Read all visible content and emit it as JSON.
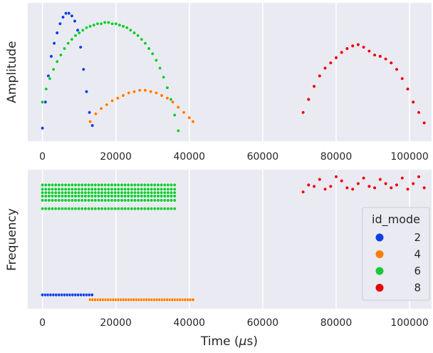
{
  "chart_data": [
    {
      "type": "scatter",
      "ylabel": "Amplitude",
      "xlabel": "",
      "xlim": [
        -4000,
        106000
      ],
      "xticks": [
        0,
        20000,
        40000,
        60000,
        80000,
        100000
      ],
      "xtick_labels": [
        "0",
        "20000",
        "40000",
        "60000",
        "80000",
        "100000"
      ],
      "ylim": [
        0,
        1.06
      ],
      "yticks_shown": false,
      "grid": true,
      "series": [
        {
          "mode": "2",
          "color": "#0d3fe8",
          "x": [
            0,
            800,
            1600,
            2400,
            3200,
            4000,
            4800,
            5600,
            6400,
            7200,
            8000,
            8800,
            9600,
            10400,
            11200,
            12000,
            12800,
            13600
          ],
          "y": [
            0.1,
            0.3,
            0.5,
            0.65,
            0.75,
            0.83,
            0.9,
            0.95,
            0.98,
            0.98,
            0.96,
            0.92,
            0.85,
            0.72,
            0.55,
            0.38,
            0.22,
            0.12
          ]
        },
        {
          "mode": "4",
          "color": "#ff7c00",
          "x": [
            13000,
            14500,
            16000,
            17500,
            19000,
            20500,
            22000,
            23500,
            25000,
            26500,
            28000,
            29500,
            31000,
            32500,
            34000,
            35500,
            37000,
            38500,
            40000,
            41000
          ],
          "y": [
            0.15,
            0.21,
            0.25,
            0.28,
            0.31,
            0.33,
            0.35,
            0.37,
            0.38,
            0.39,
            0.39,
            0.38,
            0.37,
            0.35,
            0.33,
            0.3,
            0.26,
            0.22,
            0.18,
            0.15
          ]
        },
        {
          "mode": "6",
          "color": "#1ac938",
          "x": [
            0,
            1000,
            2000,
            3000,
            4000,
            5000,
            6000,
            7000,
            8000,
            9000,
            10000,
            11000,
            12000,
            13000,
            14000,
            15000,
            16000,
            17000,
            18000,
            19000,
            20000,
            21000,
            22000,
            23000,
            24000,
            25000,
            26000,
            27000,
            28000,
            29000,
            30000,
            31000,
            32000,
            33000,
            34000,
            35000,
            36000,
            37000
          ],
          "y": [
            0.3,
            0.4,
            0.48,
            0.55,
            0.61,
            0.66,
            0.71,
            0.75,
            0.78,
            0.81,
            0.83,
            0.85,
            0.87,
            0.88,
            0.89,
            0.9,
            0.9,
            0.91,
            0.91,
            0.9,
            0.9,
            0.89,
            0.88,
            0.87,
            0.85,
            0.83,
            0.81,
            0.78,
            0.75,
            0.71,
            0.67,
            0.62,
            0.56,
            0.49,
            0.41,
            0.32,
            0.2,
            0.08
          ]
        },
        {
          "mode": "8",
          "color": "#e8000b",
          "x": [
            71000,
            72500,
            74000,
            75500,
            77000,
            78500,
            80000,
            81500,
            83000,
            84500,
            86000,
            87500,
            89000,
            90500,
            92000,
            93500,
            95000,
            96500,
            98000,
            99500,
            101000,
            102500,
            104000
          ],
          "y": [
            0.22,
            0.32,
            0.42,
            0.5,
            0.56,
            0.6,
            0.64,
            0.68,
            0.71,
            0.73,
            0.74,
            0.72,
            0.69,
            0.66,
            0.65,
            0.63,
            0.6,
            0.55,
            0.48,
            0.4,
            0.3,
            0.22,
            0.14
          ]
        }
      ]
    },
    {
      "type": "scatter",
      "ylabel": "Frequency",
      "xlabel": "Time (μs)",
      "xlim": [
        -4000,
        106000
      ],
      "xticks": [
        0,
        20000,
        40000,
        60000,
        80000,
        100000
      ],
      "xtick_labels": [
        "0",
        "20000",
        "40000",
        "60000",
        "80000",
        "100000"
      ],
      "ylim": [
        0,
        1
      ],
      "yticks_shown": false,
      "grid": true,
      "legend": {
        "title": "id_mode",
        "placement": "right",
        "entries": [
          {
            "label": "2",
            "color": "#0d3fe8"
          },
          {
            "label": "4",
            "color": "#ff7c00"
          },
          {
            "label": "6",
            "color": "#1ac938"
          },
          {
            "label": "8",
            "color": "#e8000b"
          }
        ]
      },
      "series": [
        {
          "mode": "2",
          "color": "#0d3fe8",
          "x_start": 0,
          "x_end": 13500,
          "x_step": 750,
          "levels": [
            0.1
          ]
        },
        {
          "mode": "4",
          "color": "#ff7c00",
          "x_start": 13000,
          "x_end": 41000,
          "x_step": 700,
          "levels": [
            0.065
          ]
        },
        {
          "mode": "6",
          "color": "#1ac938",
          "x_start": 0,
          "x_end": 36500,
          "x_step": 900,
          "levels": [
            0.89,
            0.86,
            0.835,
            0.81,
            0.78,
            0.72
          ]
        },
        {
          "mode": "8",
          "color": "#e8000b",
          "x": [
            71000,
            72500,
            74000,
            75500,
            77000,
            78500,
            80000,
            81500,
            83000,
            84500,
            86000,
            87500,
            89000,
            90500,
            92000,
            93500,
            95000,
            96500,
            98000,
            99500,
            101000,
            102500,
            104000
          ],
          "y": [
            0.84,
            0.89,
            0.88,
            0.93,
            0.86,
            0.88,
            0.95,
            0.92,
            0.87,
            0.86,
            0.9,
            0.94,
            0.88,
            0.87,
            0.93,
            0.9,
            0.87,
            0.89,
            0.94,
            0.86,
            0.9,
            0.95,
            0.87
          ]
        }
      ]
    }
  ]
}
